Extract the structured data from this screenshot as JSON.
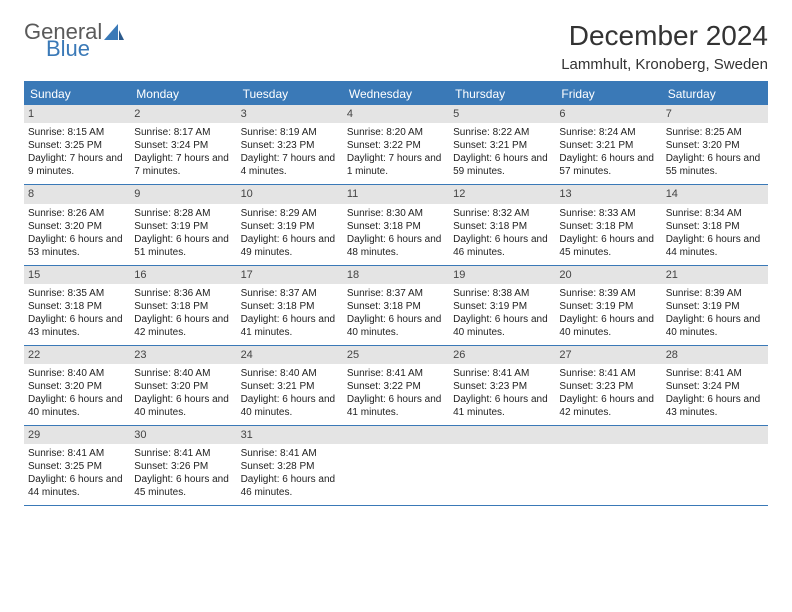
{
  "logo": {
    "general": "General",
    "blue": "Blue"
  },
  "title": "December 2024",
  "location": "Lammhult, Kronoberg, Sweden",
  "colors": {
    "header_bg": "#3a79b7",
    "daynum_bg": "#e4e4e4",
    "text": "#222222",
    "background": "#ffffff"
  },
  "fonts": {
    "title_size": 28,
    "location_size": 15,
    "dow_size": 12,
    "body_size": 10
  },
  "days_of_week": [
    "Sunday",
    "Monday",
    "Tuesday",
    "Wednesday",
    "Thursday",
    "Friday",
    "Saturday"
  ],
  "weeks": [
    [
      {
        "num": "1",
        "sunrise": "Sunrise: 8:15 AM",
        "sunset": "Sunset: 3:25 PM",
        "daylight": "Daylight: 7 hours and 9 minutes."
      },
      {
        "num": "2",
        "sunrise": "Sunrise: 8:17 AM",
        "sunset": "Sunset: 3:24 PM",
        "daylight": "Daylight: 7 hours and 7 minutes."
      },
      {
        "num": "3",
        "sunrise": "Sunrise: 8:19 AM",
        "sunset": "Sunset: 3:23 PM",
        "daylight": "Daylight: 7 hours and 4 minutes."
      },
      {
        "num": "4",
        "sunrise": "Sunrise: 8:20 AM",
        "sunset": "Sunset: 3:22 PM",
        "daylight": "Daylight: 7 hours and 1 minute."
      },
      {
        "num": "5",
        "sunrise": "Sunrise: 8:22 AM",
        "sunset": "Sunset: 3:21 PM",
        "daylight": "Daylight: 6 hours and 59 minutes."
      },
      {
        "num": "6",
        "sunrise": "Sunrise: 8:24 AM",
        "sunset": "Sunset: 3:21 PM",
        "daylight": "Daylight: 6 hours and 57 minutes."
      },
      {
        "num": "7",
        "sunrise": "Sunrise: 8:25 AM",
        "sunset": "Sunset: 3:20 PM",
        "daylight": "Daylight: 6 hours and 55 minutes."
      }
    ],
    [
      {
        "num": "8",
        "sunrise": "Sunrise: 8:26 AM",
        "sunset": "Sunset: 3:20 PM",
        "daylight": "Daylight: 6 hours and 53 minutes."
      },
      {
        "num": "9",
        "sunrise": "Sunrise: 8:28 AM",
        "sunset": "Sunset: 3:19 PM",
        "daylight": "Daylight: 6 hours and 51 minutes."
      },
      {
        "num": "10",
        "sunrise": "Sunrise: 8:29 AM",
        "sunset": "Sunset: 3:19 PM",
        "daylight": "Daylight: 6 hours and 49 minutes."
      },
      {
        "num": "11",
        "sunrise": "Sunrise: 8:30 AM",
        "sunset": "Sunset: 3:18 PM",
        "daylight": "Daylight: 6 hours and 48 minutes."
      },
      {
        "num": "12",
        "sunrise": "Sunrise: 8:32 AM",
        "sunset": "Sunset: 3:18 PM",
        "daylight": "Daylight: 6 hours and 46 minutes."
      },
      {
        "num": "13",
        "sunrise": "Sunrise: 8:33 AM",
        "sunset": "Sunset: 3:18 PM",
        "daylight": "Daylight: 6 hours and 45 minutes."
      },
      {
        "num": "14",
        "sunrise": "Sunrise: 8:34 AM",
        "sunset": "Sunset: 3:18 PM",
        "daylight": "Daylight: 6 hours and 44 minutes."
      }
    ],
    [
      {
        "num": "15",
        "sunrise": "Sunrise: 8:35 AM",
        "sunset": "Sunset: 3:18 PM",
        "daylight": "Daylight: 6 hours and 43 minutes."
      },
      {
        "num": "16",
        "sunrise": "Sunrise: 8:36 AM",
        "sunset": "Sunset: 3:18 PM",
        "daylight": "Daylight: 6 hours and 42 minutes."
      },
      {
        "num": "17",
        "sunrise": "Sunrise: 8:37 AM",
        "sunset": "Sunset: 3:18 PM",
        "daylight": "Daylight: 6 hours and 41 minutes."
      },
      {
        "num": "18",
        "sunrise": "Sunrise: 8:37 AM",
        "sunset": "Sunset: 3:18 PM",
        "daylight": "Daylight: 6 hours and 40 minutes."
      },
      {
        "num": "19",
        "sunrise": "Sunrise: 8:38 AM",
        "sunset": "Sunset: 3:19 PM",
        "daylight": "Daylight: 6 hours and 40 minutes."
      },
      {
        "num": "20",
        "sunrise": "Sunrise: 8:39 AM",
        "sunset": "Sunset: 3:19 PM",
        "daylight": "Daylight: 6 hours and 40 minutes."
      },
      {
        "num": "21",
        "sunrise": "Sunrise: 8:39 AM",
        "sunset": "Sunset: 3:19 PM",
        "daylight": "Daylight: 6 hours and 40 minutes."
      }
    ],
    [
      {
        "num": "22",
        "sunrise": "Sunrise: 8:40 AM",
        "sunset": "Sunset: 3:20 PM",
        "daylight": "Daylight: 6 hours and 40 minutes."
      },
      {
        "num": "23",
        "sunrise": "Sunrise: 8:40 AM",
        "sunset": "Sunset: 3:20 PM",
        "daylight": "Daylight: 6 hours and 40 minutes."
      },
      {
        "num": "24",
        "sunrise": "Sunrise: 8:40 AM",
        "sunset": "Sunset: 3:21 PM",
        "daylight": "Daylight: 6 hours and 40 minutes."
      },
      {
        "num": "25",
        "sunrise": "Sunrise: 8:41 AM",
        "sunset": "Sunset: 3:22 PM",
        "daylight": "Daylight: 6 hours and 41 minutes."
      },
      {
        "num": "26",
        "sunrise": "Sunrise: 8:41 AM",
        "sunset": "Sunset: 3:23 PM",
        "daylight": "Daylight: 6 hours and 41 minutes."
      },
      {
        "num": "27",
        "sunrise": "Sunrise: 8:41 AM",
        "sunset": "Sunset: 3:23 PM",
        "daylight": "Daylight: 6 hours and 42 minutes."
      },
      {
        "num": "28",
        "sunrise": "Sunrise: 8:41 AM",
        "sunset": "Sunset: 3:24 PM",
        "daylight": "Daylight: 6 hours and 43 minutes."
      }
    ],
    [
      {
        "num": "29",
        "sunrise": "Sunrise: 8:41 AM",
        "sunset": "Sunset: 3:25 PM",
        "daylight": "Daylight: 6 hours and 44 minutes."
      },
      {
        "num": "30",
        "sunrise": "Sunrise: 8:41 AM",
        "sunset": "Sunset: 3:26 PM",
        "daylight": "Daylight: 6 hours and 45 minutes."
      },
      {
        "num": "31",
        "sunrise": "Sunrise: 8:41 AM",
        "sunset": "Sunset: 3:28 PM",
        "daylight": "Daylight: 6 hours and 46 minutes."
      },
      {
        "num": "",
        "sunrise": "",
        "sunset": "",
        "daylight": "",
        "empty": true
      },
      {
        "num": "",
        "sunrise": "",
        "sunset": "",
        "daylight": "",
        "empty": true
      },
      {
        "num": "",
        "sunrise": "",
        "sunset": "",
        "daylight": "",
        "empty": true
      },
      {
        "num": "",
        "sunrise": "",
        "sunset": "",
        "daylight": "",
        "empty": true
      }
    ]
  ]
}
